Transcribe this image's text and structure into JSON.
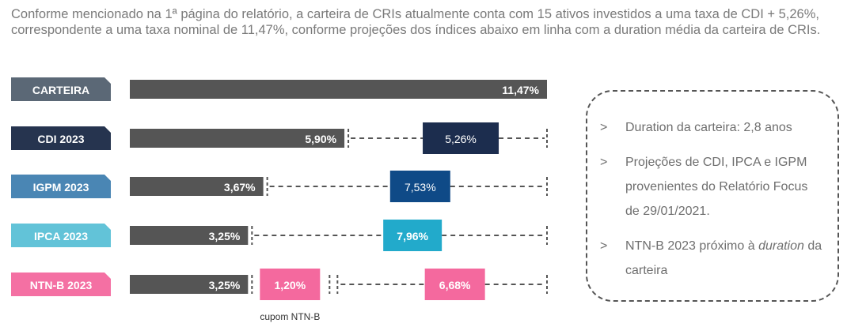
{
  "intro": "Conforme mencionado na 1ª página do relatório, a carteira de CRIs atualmente conta com 15 ativos investidos a uma taxa de CDI + 5,26%, correspondente a uma taxa nominal de 11,47%, conforme projeções dos índices abaixo em linha com a duration média da carteira de CRIs.",
  "chart_data": {
    "type": "bar",
    "orientation": "horizontal",
    "stacked": true,
    "unit": "%",
    "categories": [
      "CARTEIRA",
      "CDI 2023",
      "IGPM 2023",
      "IPCA 2023",
      "NTN-B 2023"
    ],
    "category_colors": [
      "#5b6876",
      "#26344f",
      "#4a86b4",
      "#62c3d8",
      "#f470a3"
    ],
    "total": 11.47,
    "rows": [
      {
        "category": "CARTEIRA",
        "segments": [
          {
            "value": 11.47,
            "label": "11,47%",
            "kind": "base"
          }
        ]
      },
      {
        "category": "CDI 2023",
        "segments": [
          {
            "value": 5.9,
            "label": "5,90%",
            "kind": "base"
          },
          {
            "value": 5.26,
            "label": "5,26%",
            "kind": "spread",
            "color": "#1c2d4e"
          }
        ]
      },
      {
        "category": "IGPM 2023",
        "segments": [
          {
            "value": 3.67,
            "label": "3,67%",
            "kind": "base"
          },
          {
            "value": 7.53,
            "label": "7,53%",
            "kind": "spread",
            "color": "#0f4a87"
          }
        ]
      },
      {
        "category": "IPCA 2023",
        "segments": [
          {
            "value": 3.25,
            "label": "3,25%",
            "kind": "base"
          },
          {
            "value": 7.96,
            "label": "7,96%",
            "kind": "spread",
            "color": "#22aacb"
          }
        ]
      },
      {
        "category": "NTN-B 2023",
        "segments": [
          {
            "value": 3.25,
            "label": "3,25%",
            "kind": "base"
          },
          {
            "value": 1.2,
            "label": "1,20%",
            "kind": "spread",
            "color": "#f4699e"
          },
          {
            "value": 6.68,
            "label": "6,68%",
            "kind": "spread",
            "color": "#f4699e"
          }
        ]
      }
    ],
    "annotations": [
      "cupom NTN-B"
    ],
    "colors": {
      "base_bar": "#555555",
      "dashed_line": "#555555"
    }
  },
  "notes": {
    "bullet": ">",
    "items": [
      {
        "text": "Duration da carteira: 2,8 anos"
      },
      {
        "text": "Projeções de CDI, IPCA e IGPM provenientes do Relatório Focus de 29/01/2021."
      },
      {
        "text_before": "NTN-B 2023 próximo à ",
        "text_em": "duration",
        "text_after": " da carteira"
      }
    ]
  }
}
